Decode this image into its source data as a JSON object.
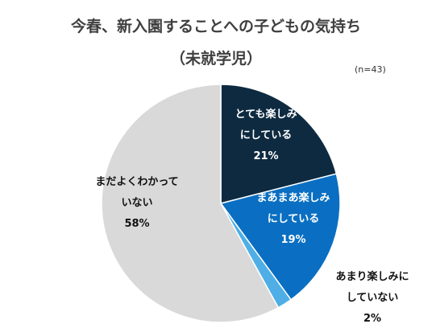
{
  "chart_data": {
    "type": "pie",
    "title": "今春、新入園することへの子どもの気持ち",
    "subtitle": "（未就学児）",
    "note": "(n=43)",
    "slices": [
      {
        "label_lines": [
          "とても楽しみ",
          "にしている"
        ],
        "value": 21,
        "value_text": "21%",
        "color": "#0d2a40",
        "text_color": "#ffffff"
      },
      {
        "label_lines": [
          "まあまあ楽しみ",
          "にしている"
        ],
        "value": 19,
        "value_text": "19%",
        "color": "#0a6fc2",
        "text_color": "#ffffff"
      },
      {
        "label_lines": [
          "あまり楽しみに",
          "していない"
        ],
        "value": 2,
        "value_text": "2%",
        "color": "#4faee6",
        "text_color": "#111111"
      },
      {
        "label_lines": [
          "まだよくわかって",
          "いない"
        ],
        "value": 58,
        "value_text": "58%",
        "color": "#d9d9d9",
        "text_color": "#111111"
      }
    ]
  }
}
